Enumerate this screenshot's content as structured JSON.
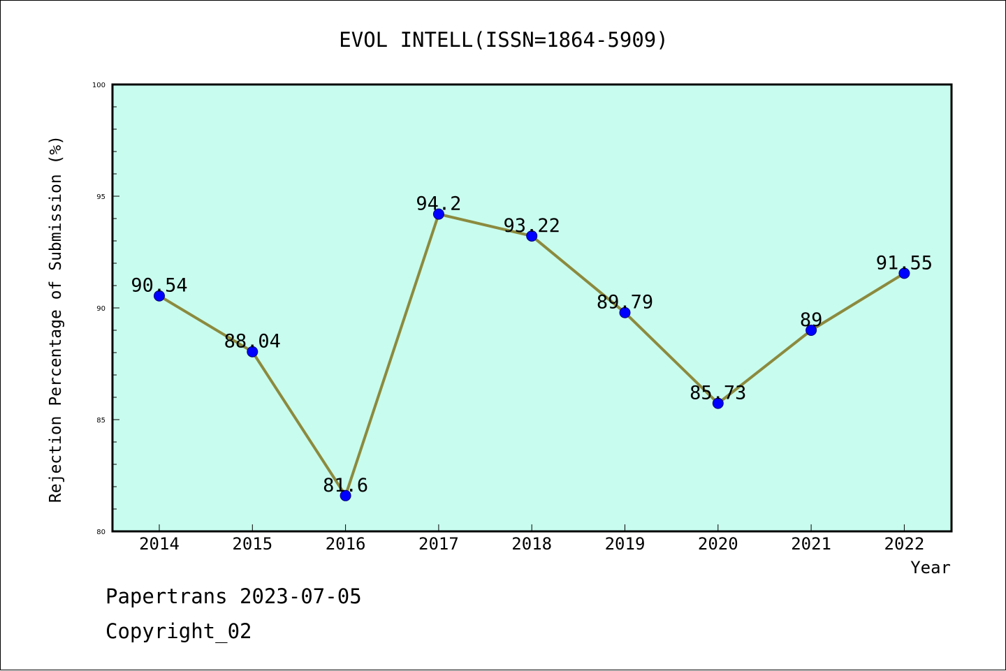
{
  "chart_data": {
    "type": "line",
    "title": "EVOL INTELL(ISSN=1864-5909)",
    "xlabel": "Year",
    "ylabel": "Rejection Percentage of Submission (%)",
    "categories": [
      "2014",
      "2015",
      "2016",
      "2017",
      "2018",
      "2019",
      "2020",
      "2021",
      "2022"
    ],
    "series": [
      {
        "values": [
          90.54,
          88.04,
          81.6,
          94.2,
          93.22,
          89.79,
          85.73,
          89,
          91.55
        ],
        "labels": [
          "90.54",
          "88.04",
          "81.6",
          "94.2",
          "93.22",
          "89.79",
          "85.73",
          "89",
          "91.55"
        ]
      }
    ],
    "ylim": [
      80,
      100
    ],
    "yticks": [
      "80",
      "85",
      "90",
      "95",
      "100"
    ],
    "grid": false,
    "legend": "none",
    "colors": {
      "plot_background": "#c8fcee",
      "line": "#8c8a3e",
      "marker": "#0000ff",
      "axes": "#000000"
    }
  },
  "footer": {
    "line1": "Papertrans 2023-07-05",
    "line2": "Copyright_02"
  }
}
